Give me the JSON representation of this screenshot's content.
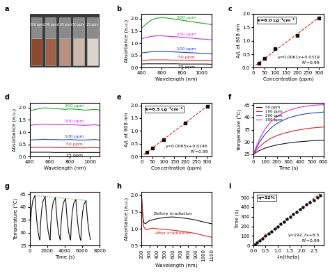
{
  "chart_data": [
    {
      "type": "photo",
      "title": "a",
      "categories": [
        "300 ppm",
        "200 ppm",
        "100 ppm",
        "50 ppm",
        "25 ppm"
      ],
      "colors": [
        "#8b4a2e",
        "#a0614a",
        "#b7917f",
        "#cdb9ad",
        "#dcd3cc"
      ]
    },
    {
      "type": "line",
      "title": "b",
      "x_label": "Wavelength (nm)",
      "y_label": "Absorbance (a.u.)",
      "x": [
        400,
        450,
        500,
        550,
        600,
        650,
        700,
        750,
        800,
        850,
        900,
        950,
        1000,
        1050,
        1100
      ],
      "xlim": [
        400,
        1100
      ],
      "xticks": [
        400,
        600,
        800,
        1000
      ],
      "ylim": [
        0,
        2.2
      ],
      "yticks": [
        0.0,
        0.5,
        1.0,
        1.5,
        2.0
      ],
      "series": [
        {
          "name": "300 ppm",
          "color": "#1aa31a",
          "values": [
            1.62,
            1.8,
            1.95,
            2.02,
            2.04,
            2.03,
            2.0,
            1.97,
            1.94,
            1.91,
            1.88,
            1.85,
            1.82,
            1.79,
            1.76
          ]
        },
        {
          "name": "200 ppm",
          "color": "#d42ad4",
          "values": [
            1.18,
            1.24,
            1.28,
            1.3,
            1.3,
            1.29,
            1.27,
            1.26,
            1.24,
            1.22,
            1.21,
            1.19,
            1.17,
            1.16,
            1.14
          ]
        },
        {
          "name": "100 ppm",
          "color": "#1f3fd6",
          "values": [
            0.6,
            0.63,
            0.65,
            0.66,
            0.66,
            0.65,
            0.65,
            0.64,
            0.63,
            0.62,
            0.61,
            0.6,
            0.59,
            0.58,
            0.57
          ]
        },
        {
          "name": "50 ppm",
          "color": "#e02020",
          "values": [
            0.3,
            0.31,
            0.32,
            0.32,
            0.32,
            0.32,
            0.31,
            0.31,
            0.31,
            0.3,
            0.3,
            0.3,
            0.29,
            0.29,
            0.29
          ]
        },
        {
          "name": "25 ppm",
          "color": "#111111",
          "values": [
            0.15,
            0.16,
            0.16,
            0.16,
            0.16,
            0.16,
            0.16,
            0.16,
            0.15,
            0.15,
            0.15,
            0.15,
            0.15,
            0.15,
            0.14
          ]
        }
      ]
    },
    {
      "type": "scatter",
      "title": "c",
      "x_label": "Concentration (ppm)",
      "y_label": "A/L at 808 nm",
      "xlim": [
        0,
        320
      ],
      "xticks": [
        0,
        50,
        100,
        150,
        200,
        250,
        300
      ],
      "ylim": [
        0,
        2.0
      ],
      "yticks": [
        0.0,
        0.5,
        1.0,
        1.5,
        2.0
      ],
      "annotations": [
        "k=6.0 Lg⁻¹cm⁻¹",
        "y=0.0061x+0.0319",
        "R²=0.99"
      ],
      "series": [
        {
          "type": "line",
          "color": "#e02020",
          "line_style": "dashed",
          "x": [
            10,
            310
          ],
          "values": [
            0.093,
            1.923
          ]
        },
        {
          "type": "scatter",
          "color": "#111111",
          "marker": "square",
          "x": [
            25,
            50,
            100,
            200,
            300
          ],
          "values": [
            0.17,
            0.35,
            0.7,
            1.2,
            1.85
          ]
        }
      ]
    },
    {
      "type": "line",
      "title": "d",
      "x_label": "Wavelength (nm)",
      "y_label": "Absorbance (a.u.)",
      "x": [
        400,
        450,
        500,
        550,
        600,
        650,
        700,
        750,
        800,
        850,
        900,
        950,
        1000,
        1050,
        1100
      ],
      "xlim": [
        400,
        1100
      ],
      "xticks": [
        400,
        600,
        800,
        1000
      ],
      "ylim": [
        0,
        2.2
      ],
      "yticks": [
        0.0,
        0.5,
        1.0,
        1.5,
        2.0
      ],
      "series": [
        {
          "name": "300 ppm",
          "color": "#1aa31a",
          "values": [
            1.88,
            1.92,
            1.97,
            1.99,
            1.98,
            1.96,
            1.95,
            1.93,
            1.95,
            1.94,
            1.92,
            1.9,
            1.91,
            1.93,
            1.9
          ]
        },
        {
          "name": "200 ppm",
          "color": "#d42ad4",
          "values": [
            1.28,
            1.3,
            1.32,
            1.33,
            1.32,
            1.31,
            1.31,
            1.3,
            1.31,
            1.3,
            1.29,
            1.28,
            1.29,
            1.3,
            1.28
          ]
        },
        {
          "name": "100 ppm",
          "color": "#1f3fd6",
          "values": [
            0.68,
            0.69,
            0.7,
            0.71,
            0.7,
            0.7,
            0.69,
            0.69,
            0.7,
            0.69,
            0.68,
            0.68,
            0.69,
            0.7,
            0.68
          ]
        },
        {
          "name": "50 ppm",
          "color": "#e02020",
          "values": [
            0.37,
            0.38,
            0.38,
            0.38,
            0.38,
            0.37,
            0.37,
            0.37,
            0.37,
            0.37,
            0.36,
            0.36,
            0.37,
            0.37,
            0.36
          ]
        },
        {
          "name": "25 ppm",
          "color": "#111111",
          "values": [
            0.18,
            0.18,
            0.18,
            0.18,
            0.18,
            0.17,
            0.17,
            0.17,
            0.17,
            0.17,
            0.17,
            0.17,
            0.17,
            0.17,
            0.17
          ]
        }
      ]
    },
    {
      "type": "scatter",
      "title": "e",
      "x_label": "Concentration (ppm)",
      "y_label": "A/L at 808 nm",
      "xlim": [
        0,
        320
      ],
      "xticks": [
        0,
        50,
        100,
        150,
        200,
        250,
        300
      ],
      "ylim": [
        0,
        2.1
      ],
      "yticks": [
        0.0,
        0.5,
        1.0,
        1.5,
        2.0
      ],
      "annotations": [
        "k=6.5 Lg⁻¹cm⁻¹",
        "y=0.0065x+0.0146",
        "R²=0.99"
      ],
      "series": [
        {
          "type": "line",
          "color": "#e02020",
          "line_style": "dashed",
          "x": [
            10,
            310
          ],
          "values": [
            0.0796,
            2.03
          ]
        },
        {
          "type": "scatter",
          "color": "#111111",
          "marker": "square",
          "x": [
            25,
            50,
            100,
            200,
            300
          ],
          "values": [
            0.17,
            0.34,
            0.67,
            1.32,
            1.97
          ]
        }
      ]
    },
    {
      "type": "line",
      "title": "f",
      "x_label": "Time (s)",
      "y_label": "Temperature (°C)",
      "legend": "upper left",
      "x": [
        0,
        25,
        50,
        100,
        150,
        200,
        250,
        300,
        350,
        400,
        450,
        500,
        550,
        600
      ],
      "xlim": [
        0,
        600
      ],
      "xticks": [
        0,
        100,
        200,
        300,
        400,
        500,
        600
      ],
      "ylim": [
        24,
        46
      ],
      "yticks": [
        25,
        30,
        35,
        40,
        45
      ],
      "series": [
        {
          "name": "50 ppm",
          "color": "#111111",
          "values": [
            25,
            25.8,
            26.5,
            27.5,
            28.2,
            28.8,
            29.2,
            29.6,
            29.9,
            30.1,
            30.3,
            30.5,
            30.6,
            30.7
          ]
        },
        {
          "name": "100 ppm",
          "color": "#e02020",
          "values": [
            25,
            26.6,
            28.0,
            30.0,
            31.5,
            32.6,
            33.4,
            34.0,
            34.6,
            35.0,
            35.4,
            35.7,
            35.9,
            36.1
          ]
        },
        {
          "name": "200 ppm",
          "color": "#1f3fd6",
          "values": [
            25,
            27.5,
            29.8,
            33.2,
            35.7,
            37.5,
            38.8,
            39.8,
            40.5,
            41.1,
            41.5,
            41.8,
            42.0,
            42.2
          ]
        },
        {
          "name": "300 ppm",
          "color": "#d42ad4",
          "values": [
            25,
            28.2,
            31.0,
            35.3,
            38.3,
            40.3,
            41.8,
            42.8,
            43.6,
            44.2,
            44.6,
            44.9,
            45.1,
            45.2
          ]
        }
      ]
    },
    {
      "type": "line",
      "title": "g",
      "x_label": "Time (s)",
      "y_label": "Temperature (°C)",
      "xlim": [
        0,
        8000
      ],
      "xticks": [
        0,
        2000,
        4000,
        6000,
        8000
      ],
      "ylim": [
        25,
        46
      ],
      "yticks": [
        25,
        30,
        35,
        40,
        45
      ],
      "series": [
        {
          "color": "#111111",
          "line_style": "solid",
          "x": [
            0,
            80,
            200,
            350,
            600,
            680,
            800,
            950,
            1100,
            1170,
            1250,
            1370,
            1520,
            1770,
            1850,
            1970,
            2120,
            2270,
            2340,
            2420,
            2540,
            2690,
            2940,
            3020,
            3140,
            3290,
            3440,
            3510,
            3590,
            3710,
            3860,
            4110,
            4190,
            4310,
            4460,
            4610,
            4680,
            4760,
            4880,
            5030,
            5280,
            5360,
            5480,
            5630,
            5780,
            5850,
            5930,
            6050,
            6200,
            6450,
            6530,
            6650,
            6800,
            6950
          ],
          "values": [
            27.0,
            34.0,
            39.0,
            42.5,
            44.5,
            40.5,
            35.0,
            30.5,
            27.8,
            27.2,
            34.0,
            38.9,
            42.3,
            44.2,
            40.2,
            34.8,
            30.4,
            27.8,
            27.2,
            33.8,
            38.7,
            42.0,
            43.8,
            39.8,
            34.6,
            30.3,
            27.7,
            27.2,
            33.7,
            38.5,
            41.7,
            43.4,
            39.4,
            34.4,
            30.2,
            27.7,
            27.2,
            33.5,
            38.3,
            41.4,
            43.0,
            39.0,
            34.2,
            30.1,
            27.6,
            27.1,
            33.3,
            38.0,
            41.0,
            42.6,
            38.6,
            34.0,
            30.0,
            27.4
          ]
        },
        {
          "color": "#1aa31a",
          "line_style": "dotted",
          "x": [
            600,
            1770,
            2940,
            4110,
            5280,
            6450
          ],
          "values": [
            44.5,
            44.2,
            43.8,
            43.4,
            43.0,
            42.6
          ]
        }
      ]
    },
    {
      "type": "line",
      "title": "h",
      "x_label": "Wavelength (nm)",
      "y_label": "Absorbance (a.u.)",
      "x": [
        200,
        210,
        220,
        230,
        250,
        275,
        300,
        350,
        400,
        500,
        600,
        700,
        800,
        900,
        1000,
        1100
      ],
      "xlim": [
        200,
        1100
      ],
      "xticks": [
        200,
        300,
        400,
        500,
        600,
        700,
        800,
        900,
        1000,
        1100
      ],
      "ylim": [
        0.5,
        2.1
      ],
      "yticks": [
        0.5,
        1.0,
        1.5,
        2.0
      ],
      "series": [
        {
          "name": "Before irradiation",
          "color": "#111111",
          "values": [
            2.0,
            1.6,
            1.3,
            1.18,
            1.15,
            1.2,
            1.24,
            1.27,
            1.3,
            1.34,
            1.35,
            1.33,
            1.3,
            1.26,
            1.2,
            1.15
          ]
        },
        {
          "name": "After irradiation",
          "color": "#e02020",
          "values": [
            1.9,
            1.5,
            1.2,
            1.05,
            0.98,
            0.97,
            1.0,
            1.02,
            1.0,
            0.98,
            0.96,
            0.93,
            0.9,
            0.86,
            0.8,
            0.75
          ]
        }
      ]
    },
    {
      "type": "scatter",
      "title": "i",
      "x_label": "-ln(theta)",
      "y_label": "Time (s)",
      "xlim": [
        0,
        2.9
      ],
      "xticks": [
        0.0,
        0.5,
        1.0,
        1.5,
        2.0,
        2.5
      ],
      "ylim": [
        0,
        560
      ],
      "yticks": [
        0,
        100,
        200,
        300,
        400,
        500
      ],
      "annotations": [
        "η=32%",
        "y=192.7x+8.5",
        "R²=0.99"
      ],
      "series": [
        {
          "type": "scatter",
          "color": "#111111",
          "marker": "circle",
          "x": [
            0.05,
            0.15,
            0.25,
            0.38,
            0.5,
            0.62,
            0.75,
            0.88,
            1.0,
            1.13,
            1.26,
            1.39,
            1.52,
            1.65,
            1.78,
            1.92,
            2.06,
            2.2,
            2.35,
            2.5,
            2.65,
            2.78
          ],
          "values": [
            10,
            30,
            50,
            75,
            100,
            125,
            150,
            175,
            200,
            225,
            250,
            275,
            300,
            325,
            350,
            375,
            400,
            425,
            450,
            475,
            500,
            520
          ]
        },
        {
          "type": "line",
          "color": "#e02020",
          "line_style": "dashed",
          "x": [
            0.0,
            2.75
          ],
          "values": [
            8.5,
            538.4
          ]
        }
      ]
    }
  ]
}
